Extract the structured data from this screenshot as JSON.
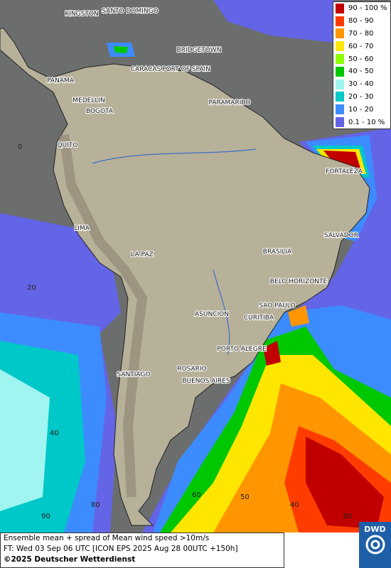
{
  "legend": [
    {
      "label": "90 - 100 %",
      "color": "#c00000"
    },
    {
      "label": "80 - 90",
      "color": "#ff3c00"
    },
    {
      "label": "70 - 80",
      "color": "#ff9600"
    },
    {
      "label": "60 - 70",
      "color": "#ffe600"
    },
    {
      "label": "50 - 60",
      "color": "#8cff00"
    },
    {
      "label": "40 - 50",
      "color": "#00c800"
    },
    {
      "label": "30 - 40",
      "color": "#a0f5f0"
    },
    {
      "label": "20 - 30",
      "color": "#00c8c8"
    },
    {
      "label": "10 - 20",
      "color": "#3c8cff"
    },
    {
      "label": "0.1 - 10 %",
      "color": "#6464e6"
    }
  ],
  "cities": [
    "KINGSTON",
    "SANTO DOMINGO",
    "BRIDGETOWN",
    "CARACAS",
    "PORT OF SPAIN",
    "PANAMA",
    "PARAMARIBO",
    "MEDELLIN",
    "BOGOTA",
    "QUITO",
    "FORTALEZA",
    "LIMA",
    "SALVADOR",
    "BRASILIA",
    "LA PAZ",
    "BELO HORIZONTE",
    "SAO PAULO",
    "ASUNCION",
    "CURITIBA",
    "PORTO ALEGRE",
    "ROSARIO",
    "SANTIAGO",
    "BUENOS AIRES"
  ],
  "grid_labels": [
    "0",
    "20",
    "40",
    "80",
    "60",
    "50",
    "40",
    "90",
    "30"
  ],
  "footer": {
    "line1": "Ensemble mean + spread of Mean wind speed >10m/s",
    "line2": "FT: Wed 03 Sep 06 UTC [ICON EPS 2025 Aug 28 00UTC +150h]",
    "line3": "©2025 Deutscher Wetterdienst",
    "logo": "DWD"
  }
}
